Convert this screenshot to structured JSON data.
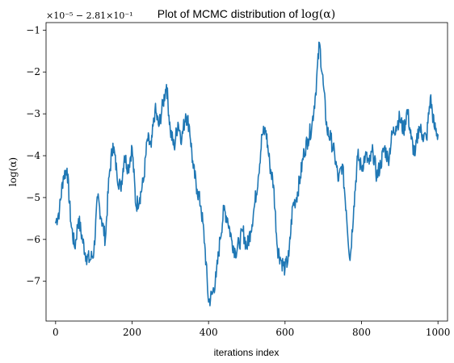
{
  "chart_data": {
    "type": "line",
    "title": "Plot of MCMC distribution of ",
    "title_math": "log(α)",
    "xlabel": "iterations index",
    "ylabel": "log(α)",
    "offset_text": "×10⁻⁵ − 2.81×10⁻¹",
    "xlim": [
      -25,
      1025
    ],
    "ylim": [
      -7.95,
      -0.82
    ],
    "x_ticks": [
      0,
      200,
      400,
      600,
      800,
      1000
    ],
    "x_tick_labels": [
      "0",
      "200",
      "400",
      "600",
      "800",
      "1000"
    ],
    "y_ticks": [
      -7,
      -6,
      -5,
      -4,
      -3,
      -2,
      -1
    ],
    "y_tick_labels": [
      "−7",
      "−6",
      "−5",
      "−4",
      "−3",
      "−2",
      "−1"
    ],
    "grid": false,
    "line_color": "#1f77b4",
    "series": [
      {
        "x": [
          0,
          10,
          20,
          30,
          40,
          50,
          60,
          70,
          80,
          90,
          100,
          110,
          120,
          130,
          140,
          150,
          160,
          170,
          180,
          190,
          200,
          210,
          220,
          230,
          240,
          250,
          260,
          270,
          280,
          290,
          300,
          310,
          320,
          330,
          340,
          350,
          360,
          370,
          380,
          390,
          400,
          410,
          420,
          430,
          440,
          450,
          460,
          470,
          480,
          490,
          500,
          510,
          520,
          530,
          540,
          550,
          560,
          570,
          580,
          590,
          600,
          610,
          620,
          630,
          640,
          650,
          660,
          670,
          680,
          690,
          700,
          710,
          720,
          730,
          740,
          750,
          760,
          770,
          780,
          790,
          800,
          810,
          820,
          830,
          840,
          850,
          860,
          870,
          880,
          890,
          900,
          910,
          920,
          930,
          940,
          950,
          960,
          970,
          980,
          990,
          1000
        ],
        "values": [
          -5.6,
          -5.3,
          -4.5,
          -4.3,
          -5.6,
          -6.2,
          -5.5,
          -6.0,
          -6.4,
          -6.5,
          -6.3,
          -5.0,
          -5.5,
          -6.0,
          -4.5,
          -3.7,
          -4.4,
          -4.8,
          -4.0,
          -4.3,
          -3.8,
          -5.2,
          -5.0,
          -4.6,
          -3.6,
          -3.8,
          -2.9,
          -3.3,
          -2.8,
          -2.3,
          -3.4,
          -3.8,
          -3.2,
          -3.6,
          -3.0,
          -3.3,
          -4.3,
          -4.8,
          -5.2,
          -6.1,
          -7.5,
          -7.3,
          -6.9,
          -6.0,
          -5.3,
          -5.5,
          -6.0,
          -6.3,
          -6.1,
          -5.8,
          -6.2,
          -5.8,
          -5.2,
          -4.5,
          -3.5,
          -3.4,
          -4.2,
          -4.7,
          -6.2,
          -6.5,
          -6.7,
          -6.4,
          -5.2,
          -5.0,
          -4.5,
          -3.9,
          -3.6,
          -3.3,
          -2.5,
          -1.3,
          -2.3,
          -3.4,
          -3.6,
          -4.0,
          -4.6,
          -4.2,
          -5.3,
          -6.5,
          -5.2,
          -4.0,
          -4.3,
          -4.0,
          -4.2,
          -3.9,
          -4.5,
          -4.2,
          -3.8,
          -4.1,
          -3.5,
          -3.3,
          -3.1,
          -3.4,
          -2.9,
          -3.6,
          -4.0,
          -3.3,
          -3.5,
          -3.6,
          -2.6,
          -3.3,
          -3.5
        ]
      }
    ]
  }
}
